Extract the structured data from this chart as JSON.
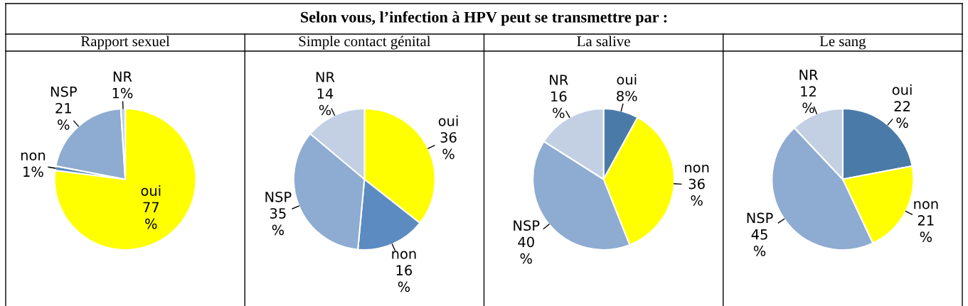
{
  "chart_data": [
    {
      "type": "pie",
      "title": "Rapport sexuel",
      "annotations": [
        "Selon vous, l’infection à HPV peut se transmettre par :"
      ],
      "categories": [
        "oui",
        "non",
        "NSP",
        "NR"
      ],
      "values": [
        77,
        1,
        21,
        1
      ],
      "value_labels": [
        "77\n%",
        "1%",
        "21\n%",
        "1%"
      ],
      "colors": [
        "#ffff00",
        "#5b8bc0",
        "#8eabd1",
        "#c3cfe3"
      ]
    },
    {
      "type": "pie",
      "title": "Simple contact génital",
      "categories": [
        "oui",
        "non",
        "NSP",
        "NR"
      ],
      "values": [
        36,
        16,
        35,
        14
      ],
      "value_labels": [
        "36\n%",
        "16\n%",
        "35\n%",
        "14\n%"
      ],
      "colors": [
        "#ffff00",
        "#5b8bc0",
        "#8eabd1",
        "#c3cfe3"
      ]
    },
    {
      "type": "pie",
      "title": "La salive",
      "categories": [
        "oui",
        "non",
        "NSP",
        "NR"
      ],
      "values": [
        8,
        36,
        40,
        16
      ],
      "value_labels": [
        "8%",
        "36\n%",
        "40\n%",
        "16\n%"
      ],
      "colors": [
        "#4a7aa8",
        "#ffff00",
        "#8eabd1",
        "#c3cfe3"
      ]
    },
    {
      "type": "pie",
      "title": "Le sang",
      "categories": [
        "oui",
        "non",
        "NSP",
        "NR"
      ],
      "values": [
        22,
        21,
        45,
        12
      ],
      "value_labels": [
        "22\n%",
        "21\n%",
        "45\n%",
        "12\n%"
      ],
      "colors": [
        "#4a7aa8",
        "#ffff00",
        "#8eabd1",
        "#c3cfe3"
      ]
    }
  ]
}
